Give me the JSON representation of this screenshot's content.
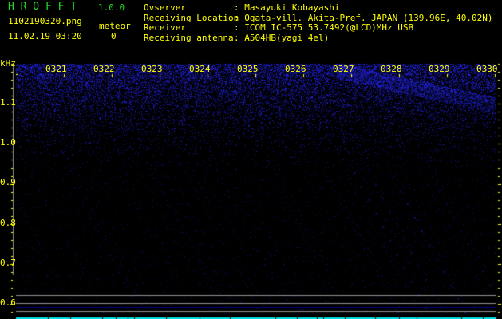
{
  "app": {
    "title": "H R O F F T",
    "version": "1.0.0"
  },
  "file": {
    "name": "1102190320.png",
    "datetime": "11.02.19 03:20"
  },
  "meteor": {
    "label": "meteor",
    "count": "0"
  },
  "info": [
    {
      "label": "Ovserver",
      "value": ": Masayuki Kobayashi"
    },
    {
      "label": "Receiving Location",
      "value": ": Ogata-vill. Akita-Pref. JAPAN (139.96E, 40.02N)"
    },
    {
      "label": "Receiver",
      "value": ": ICOM IC-575 53.7492(@LCD)MHz USB"
    },
    {
      "label": "Receiving antenna",
      "value": ": A504HB(yagi 4el)"
    }
  ],
  "spectrogram": {
    "y_unit": "kHz",
    "y_ticks": [
      "1.1",
      "1.0",
      "0.9",
      "0.8",
      "0.7",
      "0.6"
    ],
    "time_ticks": [
      "0321",
      "0322",
      "0323",
      "0324",
      "0325",
      "0326",
      "0327",
      "0328",
      "0329",
      "0330"
    ],
    "colors": {
      "signal": "#2a2aff",
      "axis": "#ffff00",
      "title": "#22dd22",
      "ref_lines": "#909090",
      "bottom_bar": "#00e0e0"
    }
  }
}
